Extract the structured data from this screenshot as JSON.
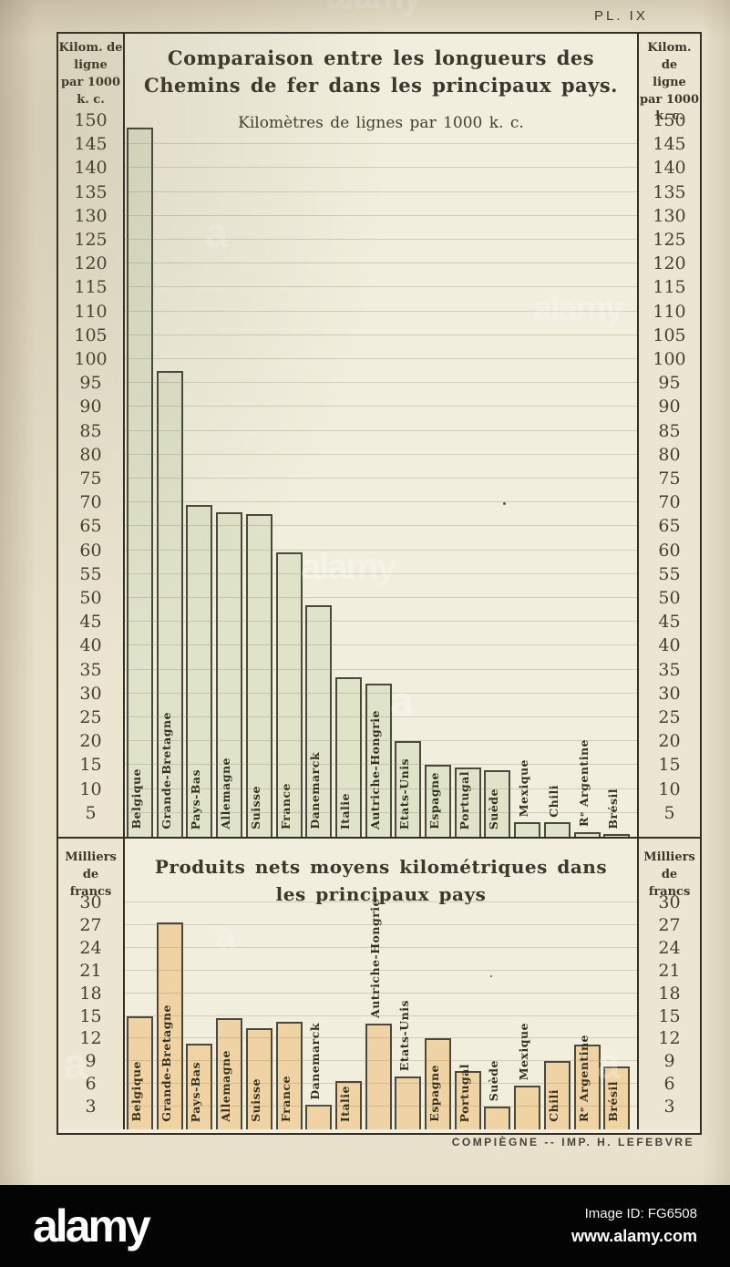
{
  "plate_label": "PL. IX",
  "footer_credit": "COMPIÈGNE -- IMP. H. LEFEBVRE",
  "alamy_bar": {
    "logo": "alamy",
    "image_id": "Image ID: FG6508",
    "url": "www.alamy.com"
  },
  "scattered_watermarks": [
    "alamy",
    "alamy",
    "alamy",
    "a",
    "a",
    "a",
    "a",
    "a"
  ],
  "colors": {
    "paper": "#e9e1cc",
    "plot_background": "#f1eedd",
    "side_column_background": "#ebe5d1",
    "ink_frame": "#332f25",
    "bar_green": "#dfe3ca",
    "bar_peach": "#f0d3a4"
  },
  "chart_data": [
    {
      "type": "bar",
      "title_lines": [
        "Comparaison entre les longueurs des",
        "Chemins de fer dans les principaux pays."
      ],
      "subtitle": "Kilomètres de lignes par 1000 k. c.",
      "axis_unit_lines": [
        "Kilom. de",
        "ligne",
        "par 1000",
        "k. c."
      ],
      "ylabel": "Kilom. de ligne par 1000 k. c.",
      "ylim": [
        0,
        150
      ],
      "tick_step": 5,
      "grid": true,
      "ticks": [
        150,
        145,
        140,
        135,
        130,
        125,
        120,
        115,
        110,
        105,
        100,
        95,
        90,
        85,
        80,
        75,
        70,
        65,
        60,
        55,
        50,
        45,
        40,
        35,
        30,
        25,
        20,
        15,
        10,
        5
      ],
      "categories": [
        "Belgique",
        "Grande-Bretagne",
        "Pays-Bas",
        "Allemagne",
        "Suisse",
        "France",
        "Danemarck",
        "Italie",
        "Autriche-Hongrie",
        "Etats-Unis",
        "Espagne",
        "Portugal",
        "Suède",
        "Mexique",
        "Chili",
        "Rᵉ Argentine",
        "Brésil"
      ],
      "values": [
        148.5,
        97.5,
        69.5,
        68,
        67.5,
        59.5,
        48.5,
        33.5,
        32,
        20,
        15,
        14.5,
        14,
        3,
        3,
        1,
        0.5
      ],
      "bar_color": "#dfe3ca"
    },
    {
      "type": "bar",
      "title_lines": [
        "Produits nets moyens kilométriques dans",
        "les principaux pays"
      ],
      "subtitle": "",
      "axis_unit_lines": [
        "Milliers",
        "de",
        "francs"
      ],
      "ylabel": "Milliers de francs",
      "ylim": [
        0,
        30
      ],
      "tick_step": 3,
      "grid": true,
      "ticks": [
        30,
        27,
        24,
        21,
        18,
        15,
        12,
        9,
        6,
        3
      ],
      "categories": [
        "Belgique",
        "Grande-Bretagne",
        "Pays-Bas",
        "Allemagne",
        "Suisse",
        "France",
        "Danemarck",
        "Italie",
        "Autriche-Hongrie",
        "Etats-Unis",
        "Espagne",
        "Portugal",
        "Suède",
        "Mexique",
        "Chili",
        "Rᵉ Argentine",
        "Brésil"
      ],
      "values": [
        15,
        27.3,
        11.3,
        14.7,
        13.4,
        14.2,
        3.2,
        6.4,
        14,
        7,
        12,
        7.7,
        3,
        5.8,
        9,
        11.2,
        8.3
      ],
      "bar_color": "#f0d3a4"
    }
  ]
}
